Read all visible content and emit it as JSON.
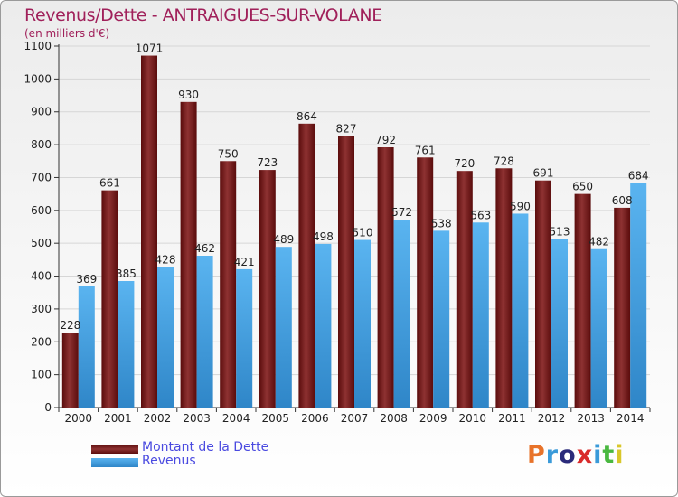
{
  "header": {
    "title": "Revenus/Dette - ANTRAIGUES-SUR-VOLANE",
    "subtitle": "(en milliers d'€)"
  },
  "logo": {
    "text": "Proxiti",
    "colors": [
      "#e8732a",
      "#3a9ad9",
      "#2a2a7a",
      "#d92a2a",
      "#3a9ad9",
      "#4ab840",
      "#d9c72a"
    ]
  },
  "colors": {
    "dette": "#7a1f1f",
    "revenus": "#4aa3e6",
    "title": "#a0205a",
    "legend_text": "#4a4ae0"
  },
  "chart_data": {
    "type": "bar",
    "title": "Revenus/Dette - ANTRAIGUES-SUR-VOLANE",
    "subtitle": "(en milliers d'€)",
    "categories": [
      "2000",
      "2001",
      "2002",
      "2003",
      "2004",
      "2005",
      "2006",
      "2007",
      "2008",
      "2009",
      "2010",
      "2011",
      "2012",
      "2013",
      "2014"
    ],
    "series": [
      {
        "name": "Montant de la Dette",
        "values": [
          228,
          661,
          1071,
          930,
          750,
          723,
          864,
          827,
          792,
          761,
          720,
          728,
          691,
          650,
          608
        ]
      },
      {
        "name": "Revenus",
        "values": [
          369,
          385,
          428,
          462,
          421,
          489,
          498,
          510,
          572,
          538,
          563,
          590,
          513,
          482,
          684
        ]
      }
    ],
    "ylim": [
      0,
      1100
    ],
    "yticks": [
      "0",
      "100",
      "200",
      "300",
      "400",
      "500",
      "600",
      "700",
      "800",
      "900",
      "1000",
      "1100"
    ],
    "grid": true,
    "legend_position": "bottom-left"
  }
}
